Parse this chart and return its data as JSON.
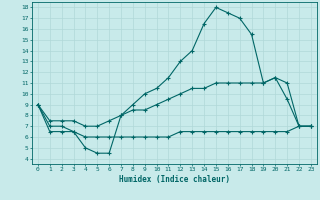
{
  "xlabel": "Humidex (Indice chaleur)",
  "bg_color": "#c8eaea",
  "line_color": "#006666",
  "grid_color": "#b0d8d8",
  "xlim": [
    -0.5,
    23.5
  ],
  "ylim": [
    3.5,
    18.5
  ],
  "xticks": [
    0,
    1,
    2,
    3,
    4,
    5,
    6,
    7,
    8,
    9,
    10,
    11,
    12,
    13,
    14,
    15,
    16,
    17,
    18,
    19,
    20,
    21,
    22,
    23
  ],
  "yticks": [
    4,
    5,
    6,
    7,
    8,
    9,
    10,
    11,
    12,
    13,
    14,
    15,
    16,
    17,
    18
  ],
  "line1_x": [
    0,
    1,
    2,
    3,
    4,
    5,
    6,
    7,
    8,
    9,
    10,
    11,
    12,
    13,
    14,
    15,
    16,
    17,
    18,
    19,
    20,
    21,
    22,
    23
  ],
  "line1_y": [
    9,
    7,
    7,
    6.5,
    5,
    4.5,
    4.5,
    8,
    9,
    10,
    10.5,
    11.5,
    13,
    14,
    16.5,
    18,
    17.5,
    17,
    15.5,
    11,
    11.5,
    9.5,
    7,
    7
  ],
  "line2_x": [
    0,
    1,
    2,
    3,
    4,
    5,
    6,
    7,
    8,
    9,
    10,
    11,
    12,
    13,
    14,
    15,
    16,
    17,
    18,
    19,
    20,
    21,
    22,
    23
  ],
  "line2_y": [
    9,
    7.5,
    7.5,
    7.5,
    7,
    7,
    7.5,
    8,
    8.5,
    8.5,
    9,
    9.5,
    10,
    10.5,
    10.5,
    11,
    11,
    11,
    11,
    11,
    11.5,
    11,
    7,
    7
  ],
  "line3_x": [
    0,
    1,
    2,
    3,
    4,
    5,
    6,
    7,
    8,
    9,
    10,
    11,
    12,
    13,
    14,
    15,
    16,
    17,
    18,
    19,
    20,
    21,
    22,
    23
  ],
  "line3_y": [
    9,
    6.5,
    6.5,
    6.5,
    6,
    6,
    6,
    6,
    6,
    6,
    6,
    6,
    6.5,
    6.5,
    6.5,
    6.5,
    6.5,
    6.5,
    6.5,
    6.5,
    6.5,
    6.5,
    7,
    7
  ]
}
